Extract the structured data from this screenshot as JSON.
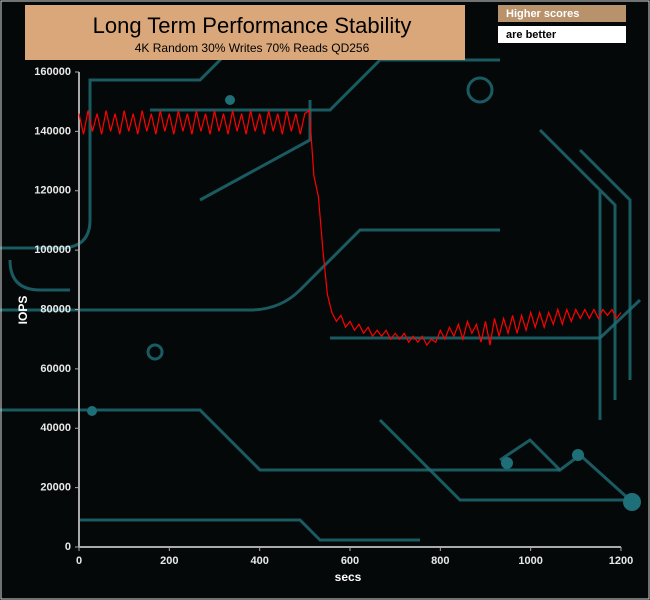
{
  "chart_data": {
    "type": "line",
    "title": "Long Term Performance Stability",
    "subtitle": "4K Random 30% Writes 70% Reads QD256",
    "annotations": [
      "Higher scores",
      "are better"
    ],
    "xlabel": "secs",
    "ylabel": "IOPS",
    "color": "#ff0000",
    "xlim": [
      0,
      1200
    ],
    "xticks": [
      0,
      200,
      400,
      600,
      800,
      1000,
      1200
    ],
    "ylim": [
      0,
      160000
    ],
    "yticks": [
      0,
      20000,
      40000,
      60000,
      80000,
      100000,
      120000,
      140000,
      160000
    ],
    "x": [
      0,
      10,
      20,
      30,
      40,
      50,
      60,
      70,
      80,
      90,
      100,
      110,
      120,
      130,
      140,
      150,
      160,
      170,
      180,
      190,
      200,
      210,
      220,
      230,
      240,
      250,
      260,
      270,
      280,
      290,
      300,
      310,
      320,
      330,
      340,
      350,
      360,
      370,
      380,
      390,
      400,
      410,
      420,
      430,
      440,
      450,
      460,
      470,
      480,
      490,
      500,
      510,
      520,
      530,
      540,
      550,
      560,
      570,
      580,
      590,
      600,
      610,
      620,
      630,
      640,
      650,
      660,
      670,
      680,
      690,
      700,
      710,
      720,
      730,
      740,
      750,
      760,
      770,
      780,
      790,
      800,
      810,
      820,
      830,
      840,
      850,
      860,
      870,
      880,
      890,
      900,
      910,
      920,
      930,
      940,
      950,
      960,
      970,
      980,
      990,
      1000,
      1010,
      1020,
      1030,
      1040,
      1050,
      1060,
      1070,
      1080,
      1090,
      1100,
      1110,
      1120,
      1130,
      1140,
      1150,
      1160,
      1170,
      1180,
      1190,
      1200
    ],
    "values": [
      146000,
      139000,
      147000,
      140000,
      146000,
      139000,
      147000,
      140000,
      146000,
      139000,
      147000,
      140000,
      146000,
      139000,
      147000,
      140000,
      146000,
      139000,
      147000,
      140000,
      146000,
      139000,
      147000,
      140000,
      146000,
      139000,
      147000,
      140000,
      146000,
      139000,
      147000,
      140000,
      146000,
      139000,
      147000,
      140000,
      146000,
      139000,
      147000,
      140000,
      146000,
      139000,
      147000,
      140000,
      146000,
      139000,
      147000,
      140000,
      146000,
      139000,
      146000,
      147000,
      125000,
      118000,
      100000,
      85000,
      79000,
      76000,
      78000,
      74000,
      76000,
      73000,
      75000,
      72000,
      74000,
      71000,
      73000,
      71000,
      73000,
      70000,
      72000,
      70000,
      72000,
      69000,
      71000,
      69000,
      71000,
      68000,
      70000,
      69000,
      73000,
      70000,
      74000,
      71000,
      75000,
      70000,
      76000,
      72000,
      75000,
      69000,
      76000,
      68000,
      77000,
      71000,
      77000,
      72000,
      78000,
      72000,
      78000,
      73000,
      79000,
      74000,
      79000,
      74000,
      79000,
      75000,
      80000,
      75000,
      80000,
      76000,
      80000,
      77000,
      80000,
      77000,
      80000,
      77000,
      80000,
      78000,
      80000,
      77000,
      79000
    ]
  }
}
